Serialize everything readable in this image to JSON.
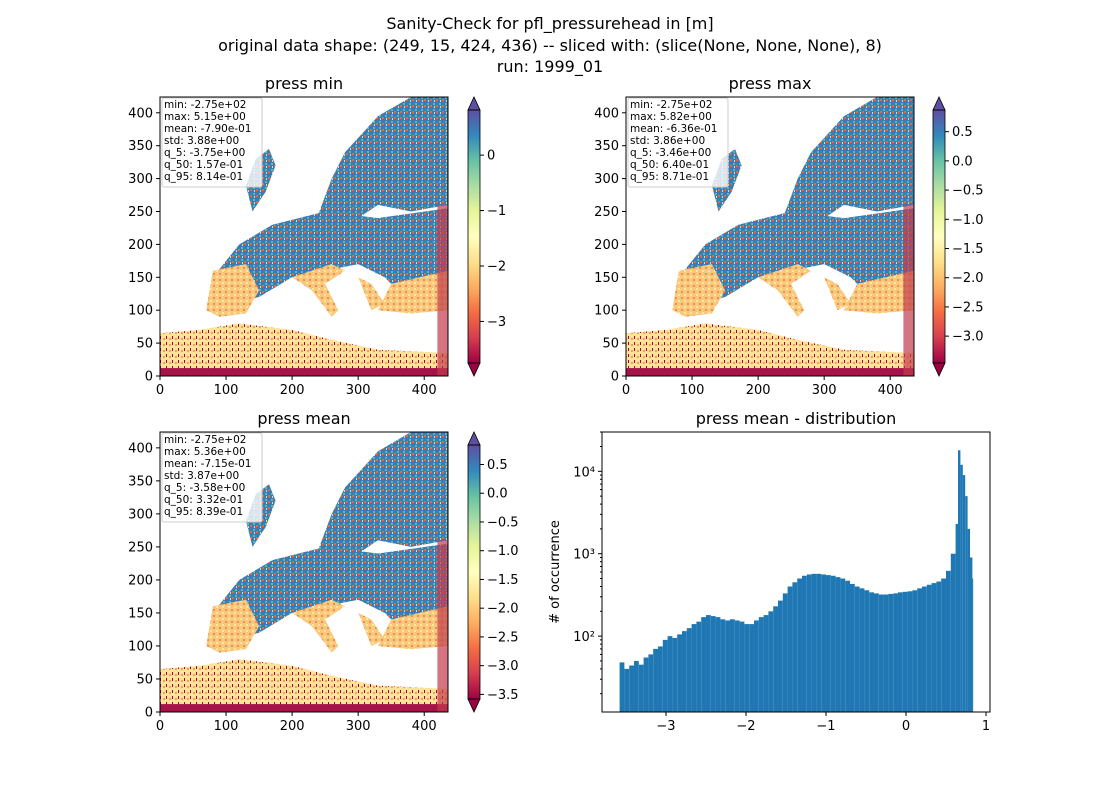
{
  "figure": {
    "title_lines": [
      "Sanity-Check for pfl_pressurehead in [m]",
      "original data shape: (249, 15, 424, 436) -- sliced with: (slice(None, None, None), 8)",
      "run: 1999_01"
    ]
  },
  "chart_data": [
    {
      "type": "heatmap",
      "title": "press min",
      "colormap": "Spectral",
      "xticks": [
        0,
        100,
        200,
        300,
        400
      ],
      "yticks": [
        0,
        50,
        100,
        150,
        200,
        250,
        300,
        350,
        400
      ],
      "xlim": [
        0,
        436
      ],
      "ylim": [
        0,
        424
      ],
      "colorbar": {
        "ticks": [
          0,
          -1,
          -2,
          -3
        ],
        "range": [
          -3.75,
          0.814
        ],
        "extend": "both"
      },
      "stats": [
        "min: -2.75e+02",
        "max: 5.15e+00",
        "mean: -7.90e-01",
        "std: 3.88e+00",
        "q_5: -3.75e+00",
        "q_50: 1.57e-01",
        "q_95: 8.14e-01"
      ]
    },
    {
      "type": "heatmap",
      "title": "press max",
      "colormap": "Spectral",
      "xticks": [
        0,
        100,
        200,
        300,
        400
      ],
      "yticks": [
        0,
        50,
        100,
        150,
        200,
        250,
        300,
        350,
        400
      ],
      "xlim": [
        0,
        436
      ],
      "ylim": [
        0,
        424
      ],
      "colorbar": {
        "ticks": [
          0.5,
          0.0,
          -0.5,
          -1.0,
          -1.5,
          -2.0,
          -2.5,
          -3.0
        ],
        "tick_labels": [
          "0.5",
          "0.0",
          "−0.5",
          "−1.0",
          "−1.5",
          "−2.0",
          "−2.5",
          "−3.0"
        ],
        "range": [
          -3.46,
          0.871
        ],
        "extend": "both"
      },
      "stats": [
        "min: -2.75e+02",
        "max: 5.82e+00",
        "mean: -6.36e-01",
        "std: 3.86e+00",
        "q_5: -3.46e+00",
        "q_50: 6.40e-01",
        "q_95: 8.71e-01"
      ]
    },
    {
      "type": "heatmap",
      "title": "press mean",
      "colormap": "Spectral",
      "xticks": [
        0,
        100,
        200,
        300,
        400
      ],
      "yticks": [
        0,
        50,
        100,
        150,
        200,
        250,
        300,
        350,
        400
      ],
      "xlim": [
        0,
        436
      ],
      "ylim": [
        0,
        424
      ],
      "colorbar": {
        "ticks": [
          0.5,
          0.0,
          -0.5,
          -1.0,
          -1.5,
          -2.0,
          -2.5,
          -3.0,
          -3.5
        ],
        "tick_labels": [
          "0.5",
          "0.0",
          "−0.5",
          "−1.0",
          "−1.5",
          "−2.0",
          "−2.5",
          "−3.0",
          "−3.5"
        ],
        "range": [
          -3.58,
          0.839
        ],
        "extend": "both"
      },
      "stats": [
        "min: -2.75e+02",
        "max: 5.36e+00",
        "mean: -7.15e-01",
        "std: 3.87e+00",
        "q_5: -3.58e+00",
        "q_50: 3.32e-01",
        "q_95: 8.39e-01"
      ]
    },
    {
      "type": "bar",
      "title": "press mean - distribution",
      "ylabel": "# of occurrence",
      "y_scale": "log",
      "xlim": [
        -3.8,
        1.05
      ],
      "ylim": [
        12,
        30000
      ],
      "xticks": [
        -3,
        -2,
        -1,
        0,
        1
      ],
      "xtick_labels": [
        "−3",
        "−2",
        "−1",
        "0",
        "1"
      ],
      "yticks": [
        100,
        1000,
        10000
      ],
      "ytick_labels": [
        "10²",
        "10³",
        "10⁴"
      ],
      "bar_color": "#1f77b4",
      "bin_range": [
        -3.58,
        0.839
      ],
      "bins": [
        {
          "x": -3.58,
          "y": 48
        },
        {
          "x": -3.52,
          "y": 40
        },
        {
          "x": -3.46,
          "y": 44
        },
        {
          "x": -3.4,
          "y": 50
        },
        {
          "x": -3.34,
          "y": 45
        },
        {
          "x": -3.28,
          "y": 55
        },
        {
          "x": -3.22,
          "y": 60
        },
        {
          "x": -3.16,
          "y": 70
        },
        {
          "x": -3.1,
          "y": 75
        },
        {
          "x": -3.04,
          "y": 90
        },
        {
          "x": -2.98,
          "y": 100
        },
        {
          "x": -2.92,
          "y": 95
        },
        {
          "x": -2.86,
          "y": 105
        },
        {
          "x": -2.8,
          "y": 115
        },
        {
          "x": -2.74,
          "y": 125
        },
        {
          "x": -2.68,
          "y": 140
        },
        {
          "x": -2.62,
          "y": 150
        },
        {
          "x": -2.56,
          "y": 170
        },
        {
          "x": -2.5,
          "y": 180
        },
        {
          "x": -2.44,
          "y": 175
        },
        {
          "x": -2.38,
          "y": 170
        },
        {
          "x": -2.32,
          "y": 160
        },
        {
          "x": -2.26,
          "y": 155
        },
        {
          "x": -2.2,
          "y": 160
        },
        {
          "x": -2.14,
          "y": 155
        },
        {
          "x": -2.08,
          "y": 150
        },
        {
          "x": -2.02,
          "y": 140
        },
        {
          "x": -1.96,
          "y": 140
        },
        {
          "x": -1.9,
          "y": 155
        },
        {
          "x": -1.84,
          "y": 170
        },
        {
          "x": -1.78,
          "y": 180
        },
        {
          "x": -1.72,
          "y": 200
        },
        {
          "x": -1.66,
          "y": 230
        },
        {
          "x": -1.6,
          "y": 270
        },
        {
          "x": -1.54,
          "y": 330
        },
        {
          "x": -1.48,
          "y": 400
        },
        {
          "x": -1.42,
          "y": 450
        },
        {
          "x": -1.36,
          "y": 500
        },
        {
          "x": -1.3,
          "y": 540
        },
        {
          "x": -1.24,
          "y": 560
        },
        {
          "x": -1.18,
          "y": 570
        },
        {
          "x": -1.12,
          "y": 570
        },
        {
          "x": -1.06,
          "y": 560
        },
        {
          "x": -1.0,
          "y": 550
        },
        {
          "x": -0.94,
          "y": 540
        },
        {
          "x": -0.88,
          "y": 520
        },
        {
          "x": -0.82,
          "y": 500
        },
        {
          "x": -0.76,
          "y": 470
        },
        {
          "x": -0.7,
          "y": 430
        },
        {
          "x": -0.64,
          "y": 400
        },
        {
          "x": -0.58,
          "y": 380
        },
        {
          "x": -0.52,
          "y": 360
        },
        {
          "x": -0.46,
          "y": 340
        },
        {
          "x": -0.4,
          "y": 330
        },
        {
          "x": -0.34,
          "y": 320
        },
        {
          "x": -0.28,
          "y": 320
        },
        {
          "x": -0.22,
          "y": 325
        },
        {
          "x": -0.16,
          "y": 330
        },
        {
          "x": -0.1,
          "y": 340
        },
        {
          "x": -0.04,
          "y": 345
        },
        {
          "x": 0.02,
          "y": 350
        },
        {
          "x": 0.08,
          "y": 360
        },
        {
          "x": 0.14,
          "y": 380
        },
        {
          "x": 0.2,
          "y": 400
        },
        {
          "x": 0.26,
          "y": 420
        },
        {
          "x": 0.32,
          "y": 440
        },
        {
          "x": 0.38,
          "y": 460
        },
        {
          "x": 0.44,
          "y": 500
        },
        {
          "x": 0.5,
          "y": 620
        },
        {
          "x": 0.56,
          "y": 1000
        },
        {
          "x": 0.62,
          "y": 2300
        },
        {
          "x": 0.65,
          "y": 18000
        },
        {
          "x": 0.68,
          "y": 12000
        },
        {
          "x": 0.71,
          "y": 9000
        },
        {
          "x": 0.74,
          "y": 5000
        },
        {
          "x": 0.77,
          "y": 2000
        },
        {
          "x": 0.8,
          "y": 900
        },
        {
          "x": 0.83,
          "y": 500
        }
      ]
    }
  ]
}
